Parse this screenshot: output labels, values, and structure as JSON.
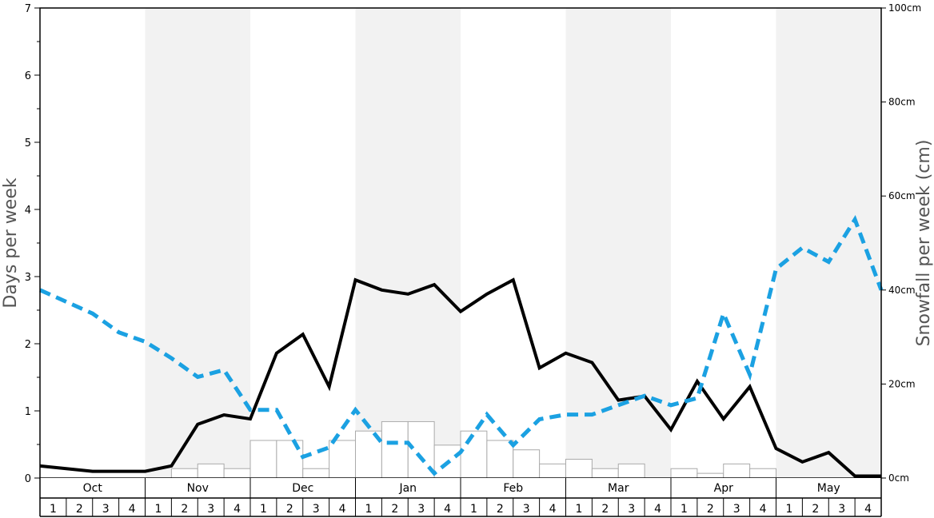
{
  "chart_data": {
    "type": "bar",
    "title": "",
    "ylabel": "Days per week",
    "y2label": "Snowfall per week (cm)",
    "ylim": [
      0,
      7
    ],
    "y2lim": [
      0,
      100
    ],
    "y_ticks": [
      "0",
      "1",
      "2",
      "3",
      "4",
      "5",
      "6",
      "7"
    ],
    "y2_ticks": [
      "0cm",
      "20cm",
      "40cm",
      "60cm",
      "80cm",
      "100cm"
    ],
    "months": [
      "Oct",
      "Nov",
      "Dec",
      "Jan",
      "Feb",
      "Mar",
      "Apr",
      "May"
    ],
    "weeks": [
      "1",
      "2",
      "3",
      "4"
    ],
    "colors": {
      "bars_fill": "#ffffff",
      "bars_stroke": "#aaaaaa",
      "solid_line": "#000000",
      "dashed_line": "#1ba1e2",
      "shade": "#f2f2f2"
    },
    "series": [
      {
        "kind": "bar",
        "axis": "right",
        "values": [
          0,
          0,
          0,
          0,
          0,
          2,
          3,
          2,
          8,
          8,
          2,
          8,
          10,
          12,
          12,
          7,
          10,
          8,
          6,
          3,
          4,
          2,
          3,
          0,
          2,
          1,
          3,
          2,
          0,
          0,
          0,
          0
        ]
      },
      {
        "kind": "line",
        "axis": "left",
        "style": "solid",
        "values": [
          0.18,
          0.14,
          0.1,
          0.1,
          0.1,
          0.18,
          0.8,
          0.94,
          0.88,
          1.86,
          2.14,
          1.36,
          2.95,
          2.8,
          2.74,
          2.88,
          2.48,
          2.74,
          2.95,
          1.64,
          1.86,
          1.72,
          1.16,
          1.22,
          0.72,
          1.44,
          0.88,
          1.36,
          0.44,
          0.24,
          0.38,
          0.03,
          0.03
        ]
      },
      {
        "kind": "line",
        "axis": "right",
        "style": "dashed",
        "values": [
          40,
          37.5,
          35,
          31,
          29,
          25.5,
          21.5,
          23,
          14.5,
          14.5,
          4.5,
          6.5,
          14.5,
          7.5,
          7.5,
          1,
          5.5,
          13.5,
          7,
          12.5,
          13.5,
          13.5,
          15.5,
          17.5,
          15.5,
          17,
          35,
          22,
          44.5,
          49,
          46,
          55,
          40
        ]
      }
    ]
  }
}
